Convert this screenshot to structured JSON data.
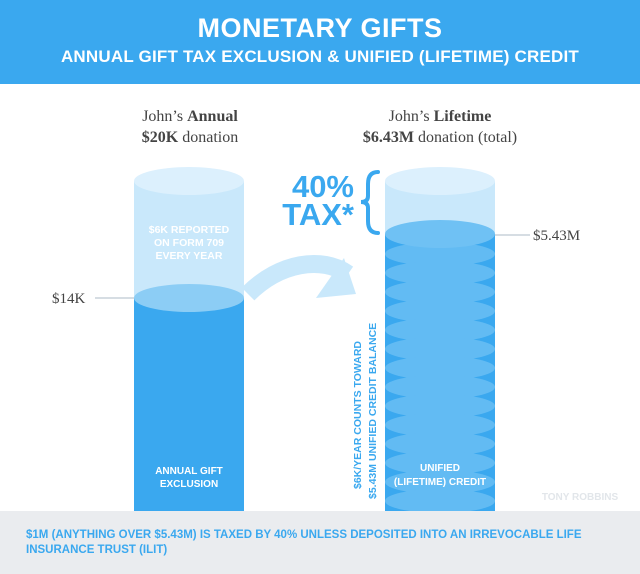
{
  "header": {
    "title": "MONETARY GIFTS",
    "subtitle": "ANNUAL GIFT TAX EXCLUSION & UNIFIED (LIFETIME) CREDIT"
  },
  "left_column": {
    "caption_line1_normal": "John’s ",
    "caption_line1_bold": "Annual",
    "caption_line2_bold": "$20K",
    "caption_line2_normal": " donation",
    "marker_label": "$14K",
    "reported_line1": "$6K REPORTED",
    "reported_line2": "ON FORM 709",
    "reported_line3": "EVERY YEAR",
    "base_line1": "ANNUAL GIFT",
    "base_line2": "EXCLUSION"
  },
  "right_column": {
    "caption_line1_normal": "John’s ",
    "caption_line1_bold": "Lifetime",
    "caption_line2_bold": "$6.43M",
    "caption_line2_normal": " donation (total)",
    "marker_label": "$5.43M",
    "tax_line1": "40%",
    "tax_line2": "TAX*",
    "vertical_line1": "$6K/YEAR COUNTS TOWARD",
    "vertical_line2": "$5.43M UNIFIED CREDIT BALANCE",
    "base_line1": "UNIFIED",
    "base_line2": "(LIFETIME) CREDIT"
  },
  "watermark": "TONY ROBBINS",
  "footer": {
    "note": "$1M (ANYTHING OVER $5.43M) IS TAXED BY 40% UNLESS DEPOSITED INTO AN IRREVOCABLE LIFE INSURANCE TRUST (ILIT)"
  },
  "colors": {
    "brand_blue": "#3aa8ef",
    "light_blue": "#c9e8fb",
    "mid_blue": "#8ccdf5",
    "footer_gray": "#eaecef"
  }
}
